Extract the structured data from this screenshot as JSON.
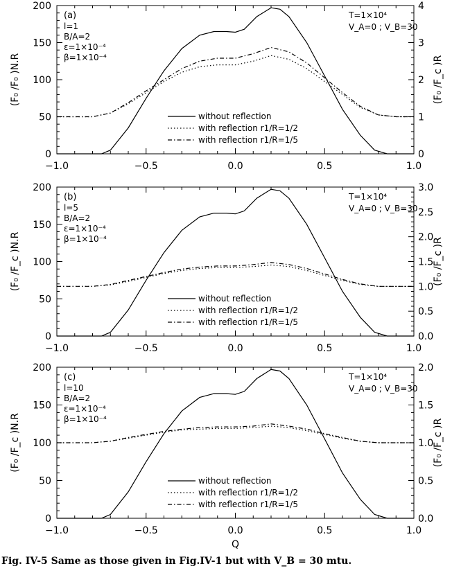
{
  "caption": "Fig. IV-5 Same as those given in Fig.IV-1 but with V_B = 30 mtu.",
  "chart_data": [
    {
      "type": "line",
      "panel_label": "(a)",
      "params_left": [
        "l=1",
        "B/A=2",
        "ε=1×10⁻⁴",
        "β=1×10⁻⁴"
      ],
      "params_right": [
        "T=1×10⁴",
        "V_A=0 ; V_B=30"
      ],
      "ylabel_left": "(F₀ /F₀ )N.R",
      "ylabel_right": "(F₀ /F_c )R",
      "xlabel": "",
      "xlim": [
        -1.0,
        1.0
      ],
      "x_ticks": [
        "−1.0",
        "−0.5",
        "0.0",
        "0.5",
        "1.0"
      ],
      "ylim_left": [
        0,
        200
      ],
      "y_ticks_left": [
        "0",
        "50",
        "100",
        "150",
        "200"
      ],
      "ylim_right": [
        0,
        4
      ],
      "y_ticks_right": [
        "0",
        "1",
        "2",
        "3",
        "4"
      ],
      "legend_position": "bottom-center",
      "series": [
        {
          "name": "without reflection",
          "axis": "left",
          "style": "solid",
          "points": [
            [
              -1.0,
              0
            ],
            [
              -0.75,
              0
            ],
            [
              -0.7,
              5
            ],
            [
              -0.6,
              35
            ],
            [
              -0.5,
              75
            ],
            [
              -0.4,
              112
            ],
            [
              -0.3,
              142
            ],
            [
              -0.2,
              160
            ],
            [
              -0.12,
              165
            ],
            [
              -0.05,
              165
            ],
            [
              0.0,
              164
            ],
            [
              0.05,
              168
            ],
            [
              0.12,
              185
            ],
            [
              0.2,
              197
            ],
            [
              0.25,
              195
            ],
            [
              0.3,
              185
            ],
            [
              0.4,
              150
            ],
            [
              0.5,
              105
            ],
            [
              0.6,
              60
            ],
            [
              0.7,
              25
            ],
            [
              0.78,
              5
            ],
            [
              0.85,
              0
            ],
            [
              1.0,
              0
            ]
          ]
        },
        {
          "name": "with reflection r1/R=1/2",
          "axis": "right",
          "style": "dotted",
          "points": [
            [
              -1.0,
              1.0
            ],
            [
              -0.8,
              1.0
            ],
            [
              -0.7,
              1.1
            ],
            [
              -0.6,
              1.35
            ],
            [
              -0.5,
              1.65
            ],
            [
              -0.4,
              1.95
            ],
            [
              -0.3,
              2.2
            ],
            [
              -0.2,
              2.35
            ],
            [
              -0.1,
              2.4
            ],
            [
              0.0,
              2.4
            ],
            [
              0.1,
              2.5
            ],
            [
              0.2,
              2.65
            ],
            [
              0.3,
              2.55
            ],
            [
              0.4,
              2.3
            ],
            [
              0.5,
              1.95
            ],
            [
              0.6,
              1.6
            ],
            [
              0.7,
              1.25
            ],
            [
              0.8,
              1.05
            ],
            [
              0.9,
              1.0
            ],
            [
              1.0,
              1.0
            ]
          ]
        },
        {
          "name": "with reflection r1/R=1/5",
          "axis": "right",
          "style": "dashdot",
          "points": [
            [
              -1.0,
              1.0
            ],
            [
              -0.8,
              1.0
            ],
            [
              -0.7,
              1.1
            ],
            [
              -0.6,
              1.38
            ],
            [
              -0.5,
              1.7
            ],
            [
              -0.4,
              2.0
            ],
            [
              -0.3,
              2.3
            ],
            [
              -0.2,
              2.5
            ],
            [
              -0.1,
              2.58
            ],
            [
              0.0,
              2.58
            ],
            [
              0.1,
              2.7
            ],
            [
              0.2,
              2.87
            ],
            [
              0.3,
              2.75
            ],
            [
              0.4,
              2.45
            ],
            [
              0.5,
              2.05
            ],
            [
              0.6,
              1.65
            ],
            [
              0.7,
              1.28
            ],
            [
              0.8,
              1.05
            ],
            [
              0.9,
              1.0
            ],
            [
              1.0,
              1.0
            ]
          ]
        }
      ]
    },
    {
      "type": "line",
      "panel_label": "(b)",
      "params_left": [
        "l=5",
        "B/A=2",
        "ε=1×10⁻⁴",
        "β=1×10⁻⁴"
      ],
      "params_right": [
        "T=1×10⁴",
        "V_A=0 ; V_B=30"
      ],
      "ylabel_left": "(F₀ /F_c )N.R",
      "ylabel_right": "(F₀ /F_c )R",
      "xlabel": "",
      "xlim": [
        -1.0,
        1.0
      ],
      "x_ticks": [
        "−1.0",
        "−0.5",
        "0.0",
        "0.5",
        "1.0"
      ],
      "ylim_left": [
        0,
        200
      ],
      "y_ticks_left": [
        "0",
        "50",
        "100",
        "150",
        "200"
      ],
      "ylim_right": [
        0,
        3
      ],
      "y_ticks_right": [
        "0.0",
        "0.5",
        "1.0",
        "1.5",
        "2.0",
        "2.5",
        "3.0"
      ],
      "legend_position": "bottom-center",
      "series": [
        {
          "name": "without reflection",
          "axis": "left",
          "style": "solid",
          "points": [
            [
              -1.0,
              0
            ],
            [
              -0.75,
              0
            ],
            [
              -0.7,
              5
            ],
            [
              -0.6,
              35
            ],
            [
              -0.5,
              75
            ],
            [
              -0.4,
              112
            ],
            [
              -0.3,
              142
            ],
            [
              -0.2,
              160
            ],
            [
              -0.12,
              165
            ],
            [
              -0.05,
              165
            ],
            [
              0.0,
              164
            ],
            [
              0.05,
              168
            ],
            [
              0.12,
              185
            ],
            [
              0.2,
              197
            ],
            [
              0.25,
              195
            ],
            [
              0.3,
              185
            ],
            [
              0.4,
              150
            ],
            [
              0.5,
              105
            ],
            [
              0.6,
              60
            ],
            [
              0.7,
              25
            ],
            [
              0.78,
              5
            ],
            [
              0.85,
              0
            ],
            [
              1.0,
              0
            ]
          ]
        },
        {
          "name": "with reflection r1/R=1/2",
          "axis": "right",
          "style": "dotted",
          "points": [
            [
              -1.0,
              1.0
            ],
            [
              -0.8,
              1.0
            ],
            [
              -0.7,
              1.03
            ],
            [
              -0.6,
              1.1
            ],
            [
              -0.5,
              1.18
            ],
            [
              -0.4,
              1.26
            ],
            [
              -0.3,
              1.32
            ],
            [
              -0.2,
              1.36
            ],
            [
              -0.1,
              1.38
            ],
            [
              0.0,
              1.38
            ],
            [
              0.1,
              1.4
            ],
            [
              0.2,
              1.43
            ],
            [
              0.3,
              1.4
            ],
            [
              0.4,
              1.32
            ],
            [
              0.5,
              1.22
            ],
            [
              0.6,
              1.12
            ],
            [
              0.7,
              1.04
            ],
            [
              0.8,
              1.0
            ],
            [
              1.0,
              1.0
            ]
          ]
        },
        {
          "name": "with reflection r1/R=1/5",
          "axis": "right",
          "style": "dashdot",
          "points": [
            [
              -1.0,
              1.0
            ],
            [
              -0.8,
              1.0
            ],
            [
              -0.7,
              1.04
            ],
            [
              -0.6,
              1.12
            ],
            [
              -0.5,
              1.2
            ],
            [
              -0.4,
              1.28
            ],
            [
              -0.3,
              1.35
            ],
            [
              -0.2,
              1.39
            ],
            [
              -0.1,
              1.41
            ],
            [
              0.0,
              1.41
            ],
            [
              0.1,
              1.44
            ],
            [
              0.2,
              1.48
            ],
            [
              0.3,
              1.44
            ],
            [
              0.4,
              1.36
            ],
            [
              0.5,
              1.25
            ],
            [
              0.6,
              1.14
            ],
            [
              0.7,
              1.05
            ],
            [
              0.8,
              1.0
            ],
            [
              1.0,
              1.0
            ]
          ]
        }
      ]
    },
    {
      "type": "line",
      "panel_label": "(c)",
      "params_left": [
        "l=10",
        "B/A=2",
        "ε=1×10⁻⁴",
        "β=1×10⁻⁴"
      ],
      "params_right": [
        "T=1×10⁴",
        "V_A=0 ; V_B=30"
      ],
      "ylabel_left": "(F₀ /F_c )N.R",
      "ylabel_right": "(F₀ /F_c )R",
      "xlabel": "Q",
      "xlim": [
        -1.0,
        1.0
      ],
      "x_ticks": [
        "−1.0",
        "−0.5",
        "0.0",
        "0.5",
        "1.0"
      ],
      "ylim_left": [
        0,
        200
      ],
      "y_ticks_left": [
        "0",
        "50",
        "100",
        "150",
        "200"
      ],
      "ylim_right": [
        0,
        2
      ],
      "y_ticks_right": [
        "0.0",
        "0.5",
        "1.0",
        "1.5",
        "2.0"
      ],
      "legend_position": "bottom-center",
      "series": [
        {
          "name": "without reflection",
          "axis": "left",
          "style": "solid",
          "points": [
            [
              -1.0,
              0
            ],
            [
              -0.75,
              0
            ],
            [
              -0.7,
              5
            ],
            [
              -0.6,
              35
            ],
            [
              -0.5,
              75
            ],
            [
              -0.4,
              112
            ],
            [
              -0.3,
              142
            ],
            [
              -0.2,
              160
            ],
            [
              -0.12,
              165
            ],
            [
              -0.05,
              165
            ],
            [
              0.0,
              164
            ],
            [
              0.05,
              168
            ],
            [
              0.12,
              185
            ],
            [
              0.2,
              197
            ],
            [
              0.25,
              195
            ],
            [
              0.3,
              185
            ],
            [
              0.4,
              150
            ],
            [
              0.5,
              105
            ],
            [
              0.6,
              60
            ],
            [
              0.7,
              25
            ],
            [
              0.78,
              5
            ],
            [
              0.85,
              0
            ],
            [
              1.0,
              0
            ]
          ]
        },
        {
          "name": "with reflection r1/R=1/2",
          "axis": "right",
          "style": "dotted",
          "points": [
            [
              -1.0,
              1.0
            ],
            [
              -0.8,
              1.0
            ],
            [
              -0.7,
              1.02
            ],
            [
              -0.6,
              1.06
            ],
            [
              -0.5,
              1.1
            ],
            [
              -0.4,
              1.14
            ],
            [
              -0.3,
              1.17
            ],
            [
              -0.2,
              1.18
            ],
            [
              -0.1,
              1.19
            ],
            [
              0.0,
              1.19
            ],
            [
              0.1,
              1.2
            ],
            [
              0.2,
              1.22
            ],
            [
              0.3,
              1.2
            ],
            [
              0.4,
              1.16
            ],
            [
              0.5,
              1.11
            ],
            [
              0.6,
              1.06
            ],
            [
              0.7,
              1.02
            ],
            [
              0.8,
              1.0
            ],
            [
              1.0,
              1.0
            ]
          ]
        },
        {
          "name": "with reflection r1/R=1/5",
          "axis": "right",
          "style": "dashdot",
          "points": [
            [
              -1.0,
              1.0
            ],
            [
              -0.8,
              1.0
            ],
            [
              -0.7,
              1.02
            ],
            [
              -0.6,
              1.07
            ],
            [
              -0.5,
              1.11
            ],
            [
              -0.4,
              1.15
            ],
            [
              -0.3,
              1.18
            ],
            [
              -0.2,
              1.2
            ],
            [
              -0.1,
              1.21
            ],
            [
              0.0,
              1.21
            ],
            [
              0.1,
              1.22
            ],
            [
              0.2,
              1.25
            ],
            [
              0.3,
              1.22
            ],
            [
              0.4,
              1.18
            ],
            [
              0.5,
              1.12
            ],
            [
              0.6,
              1.07
            ],
            [
              0.7,
              1.02
            ],
            [
              0.8,
              1.0
            ],
            [
              1.0,
              1.0
            ]
          ]
        }
      ]
    }
  ]
}
